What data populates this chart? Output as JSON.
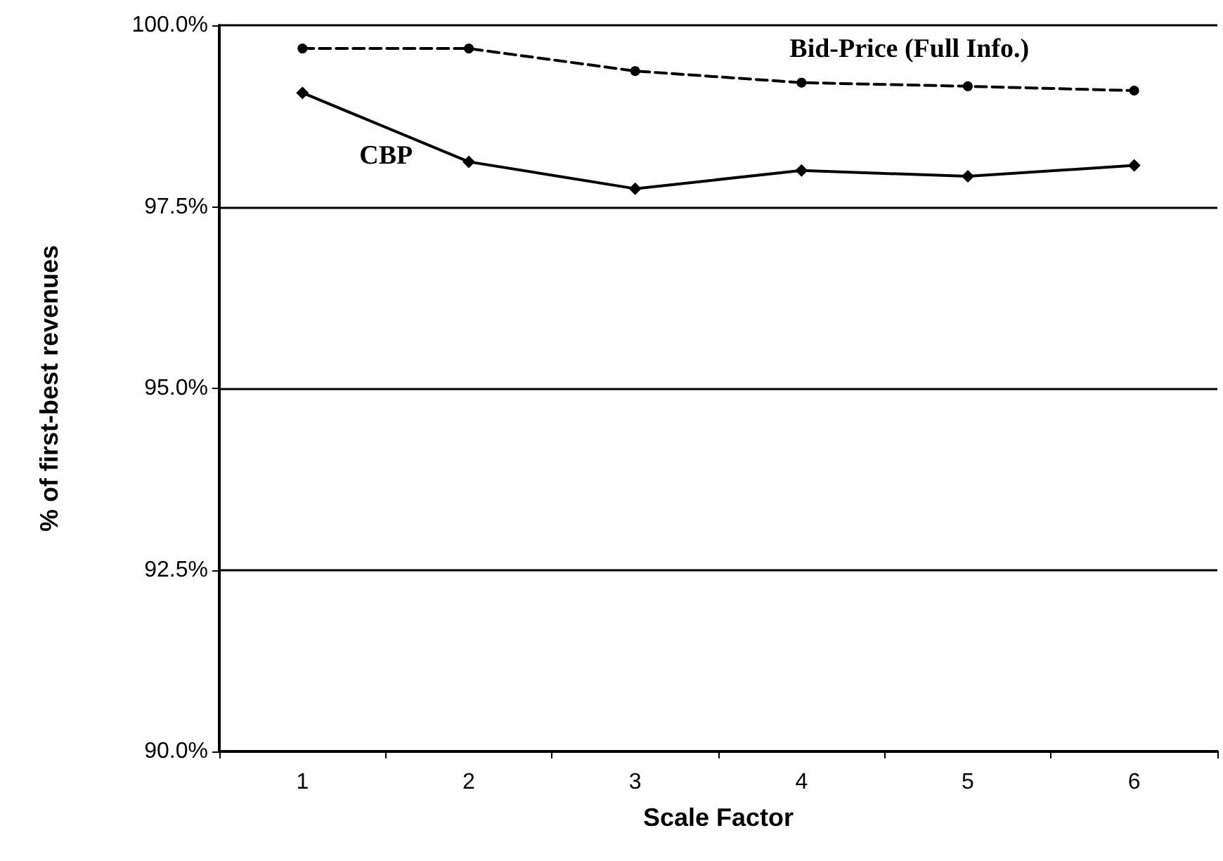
{
  "chart_data": {
    "type": "line",
    "xlabel": "Scale Factor",
    "ylabel": "% of first-best revenues",
    "categories": [
      "1",
      "2",
      "3",
      "4",
      "5",
      "6"
    ],
    "series": [
      {
        "name": "Bid-Price (Full Info.)",
        "color": "#000000",
        "line_style": "dashed",
        "marker": "circle",
        "values": [
          99.68,
          99.68,
          99.37,
          99.21,
          99.16,
          99.1
        ]
      },
      {
        "name": "CBP",
        "color": "#000000",
        "line_style": "solid",
        "marker": "diamond",
        "values": [
          99.07,
          98.12,
          97.75,
          98.0,
          97.92,
          98.07
        ]
      }
    ],
    "ylim": [
      90,
      100
    ],
    "yticks": [
      {
        "value": 90,
        "label": "90.0%"
      },
      {
        "value": 92.5,
        "label": "92.5%"
      },
      {
        "value": 95,
        "label": "95.0%"
      },
      {
        "value": 97.5,
        "label": "97.5%"
      },
      {
        "value": 100,
        "label": "100.0%"
      }
    ],
    "grid": "y",
    "legend": false
  }
}
